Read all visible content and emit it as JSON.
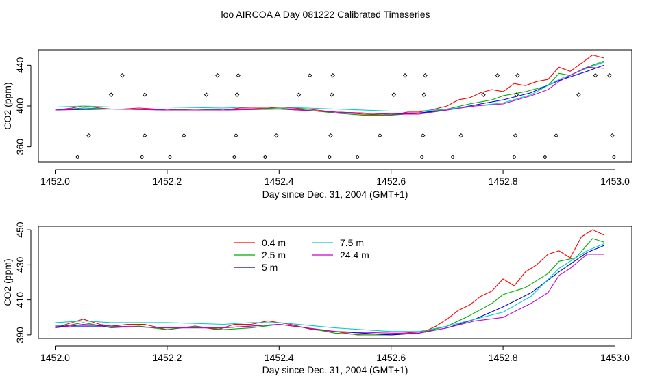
{
  "figure": {
    "title": "loo AIRCOA A  Day 081222  Calibrated Timeseries"
  },
  "chart_data": [
    {
      "type": "line",
      "name": "top-panel",
      "xlabel": "Day since Dec. 31, 2004 (GMT+1)",
      "ylabel": "CO2 (ppm)",
      "xlim": [
        1451.97,
        1453.03
      ],
      "ylim": [
        345,
        455
      ],
      "xticks": [
        1452.0,
        1452.2,
        1452.4,
        1452.6,
        1452.8,
        1453.0
      ],
      "xtick_labels": [
        "1452.0",
        "1452.2",
        "1452.4",
        "1452.6",
        "1452.8",
        "1453.0"
      ],
      "yticks": [
        360,
        400,
        440
      ],
      "ytick_labels": [
        "360",
        "400",
        "440"
      ],
      "legend": false,
      "series": [
        {
          "color": "#ff0000",
          "x": [
            1452.0,
            1452.03,
            1452.05,
            1452.08,
            1452.1,
            1452.12,
            1452.15,
            1452.18,
            1452.2,
            1452.22,
            1452.25,
            1452.28,
            1452.3,
            1452.33,
            1452.35,
            1452.38,
            1452.4,
            1452.45,
            1452.5,
            1452.55,
            1452.6,
            1452.63,
            1452.65,
            1452.67,
            1452.7,
            1452.72,
            1452.74,
            1452.76,
            1452.78,
            1452.8,
            1452.82,
            1452.84,
            1452.86,
            1452.88,
            1452.9,
            1452.92,
            1452.94,
            1452.96,
            1452.98
          ],
          "y": [
            396,
            398,
            400,
            398,
            397,
            397,
            398,
            397,
            396,
            397,
            397,
            397,
            396,
            398,
            398,
            398,
            399,
            397,
            394,
            392,
            391,
            394,
            394,
            396,
            400,
            406,
            408,
            413,
            416,
            414,
            422,
            420,
            424,
            426,
            438,
            434,
            442,
            450,
            447
          ]
        },
        {
          "color": "#00aa00",
          "x": [
            1452.0,
            1452.05,
            1452.1,
            1452.15,
            1452.2,
            1452.25,
            1452.3,
            1452.35,
            1452.4,
            1452.45,
            1452.5,
            1452.55,
            1452.6,
            1452.65,
            1452.7,
            1452.74,
            1452.78,
            1452.8,
            1452.84,
            1452.88,
            1452.9,
            1452.92,
            1452.95,
            1452.98
          ],
          "y": [
            396,
            398,
            397,
            397,
            396,
            397,
            396,
            397,
            398,
            396,
            393,
            391,
            391,
            393,
            397,
            402,
            406,
            410,
            414,
            420,
            432,
            430,
            438,
            444
          ]
        },
        {
          "color": "#0000ff",
          "x": [
            1452.0,
            1452.1,
            1452.2,
            1452.3,
            1452.4,
            1452.5,
            1452.6,
            1452.65,
            1452.7,
            1452.75,
            1452.8,
            1452.85,
            1452.9,
            1452.95,
            1452.98
          ],
          "y": [
            396,
            397,
            396,
            396,
            397,
            394,
            392,
            393,
            396,
            401,
            406,
            413,
            425,
            434,
            440
          ]
        },
        {
          "color": "#00cccc",
          "x": [
            1452.0,
            1452.05,
            1452.1,
            1452.2,
            1452.3,
            1452.35,
            1452.4,
            1452.5,
            1452.6,
            1452.65,
            1452.7,
            1452.75,
            1452.8,
            1452.85,
            1452.9,
            1452.95,
            1452.98
          ],
          "y": [
            399,
            400,
            399,
            399,
            398,
            399,
            399,
            397,
            395,
            395,
            397,
            400,
            403,
            411,
            426,
            437,
            443
          ]
        },
        {
          "color": "#cc00cc",
          "x": [
            1452.0,
            1452.05,
            1452.1,
            1452.2,
            1452.3,
            1452.4,
            1452.5,
            1452.6,
            1452.65,
            1452.7,
            1452.75,
            1452.8,
            1452.85,
            1452.88,
            1452.9,
            1452.92,
            1452.95,
            1452.98
          ],
          "y": [
            396,
            397,
            397,
            396,
            396,
            397,
            394,
            392,
            392,
            396,
            400,
            402,
            410,
            416,
            424,
            430,
            438,
            437
          ]
        }
      ],
      "markers": {
        "x": [
          1452.04,
          1452.06,
          1452.1,
          1452.12,
          1452.155,
          1452.16,
          1452.16,
          1452.205,
          1452.23,
          1452.27,
          1452.29,
          1452.32,
          1452.323,
          1452.325,
          1452.327,
          1452.375,
          1452.395,
          1452.435,
          1452.455,
          1452.49,
          1452.492,
          1452.494,
          1452.496,
          1452.54,
          1452.58,
          1452.605,
          1452.625,
          1452.655,
          1452.657,
          1452.659,
          1452.661,
          1452.71,
          1452.725,
          1452.765,
          1452.79,
          1452.82,
          1452.822,
          1452.824,
          1452.826,
          1452.875,
          1452.895,
          1452.935,
          1452.965,
          1452.99,
          1452.995,
          1452.998
        ],
        "y": [
          350,
          371,
          411,
          430,
          350,
          371,
          411,
          350,
          371,
          411,
          430,
          350,
          371,
          411,
          430,
          350,
          371,
          411,
          430,
          350,
          371,
          411,
          430,
          350,
          371,
          411,
          430,
          350,
          371,
          411,
          430,
          350,
          371,
          411,
          430,
          350,
          371,
          411,
          430,
          350,
          371,
          411,
          430,
          430,
          371,
          350
        ]
      }
    },
    {
      "type": "line",
      "name": "bottom-panel",
      "xlabel": "Day since Dec. 31, 2004 (GMT+1)",
      "ylabel": "CO2 (ppm)",
      "xlim": [
        1451.97,
        1453.03
      ],
      "ylim": [
        388,
        452
      ],
      "xticks": [
        1452.0,
        1452.2,
        1452.4,
        1452.6,
        1452.8,
        1453.0
      ],
      "xtick_labels": [
        "1452.0",
        "1452.2",
        "1452.4",
        "1452.6",
        "1452.8",
        "1453.0"
      ],
      "yticks": [
        390,
        410,
        430,
        450
      ],
      "ytick_labels": [
        "390",
        "410",
        "430",
        "450"
      ],
      "legend": true,
      "legend_placement": "top-left",
      "series": [
        {
          "name": "0.4 m",
          "color": "#ff0000",
          "x": [
            1452.0,
            1452.03,
            1452.05,
            1452.08,
            1452.1,
            1452.13,
            1452.16,
            1452.2,
            1452.25,
            1452.29,
            1452.32,
            1452.35,
            1452.38,
            1452.42,
            1452.46,
            1452.5,
            1452.54,
            1452.58,
            1452.62,
            1452.66,
            1452.68,
            1452.7,
            1452.72,
            1452.74,
            1452.76,
            1452.78,
            1452.8,
            1452.82,
            1452.84,
            1452.86,
            1452.88,
            1452.9,
            1452.92,
            1452.94,
            1452.96,
            1452.98
          ],
          "y": [
            394,
            397,
            399,
            396,
            395,
            396,
            396,
            393,
            395,
            393,
            396,
            396,
            398,
            396,
            393,
            392,
            390,
            390,
            391,
            392,
            395,
            399,
            404,
            407,
            412,
            415,
            422,
            418,
            426,
            430,
            436,
            438,
            434,
            446,
            450,
            447
          ]
        },
        {
          "name": "2.5 m",
          "color": "#00aa00",
          "x": [
            1452.0,
            1452.05,
            1452.1,
            1452.15,
            1452.2,
            1452.25,
            1452.3,
            1452.35,
            1452.4,
            1452.45,
            1452.5,
            1452.55,
            1452.6,
            1452.65,
            1452.7,
            1452.74,
            1452.78,
            1452.8,
            1452.84,
            1452.88,
            1452.9,
            1452.93,
            1452.96,
            1452.98
          ],
          "y": [
            394,
            397,
            394,
            395,
            393,
            395,
            393,
            394,
            396,
            394,
            391,
            390,
            390,
            391,
            395,
            401,
            408,
            413,
            417,
            425,
            432,
            434,
            445,
            443
          ]
        },
        {
          "name": "5 m",
          "color": "#0000cc",
          "x": [
            1452.0,
            1452.1,
            1452.2,
            1452.3,
            1452.4,
            1452.5,
            1452.6,
            1452.65,
            1452.7,
            1452.75,
            1452.8,
            1452.85,
            1452.9,
            1452.95,
            1452.98
          ],
          "y": [
            395,
            395,
            394,
            394,
            396,
            392,
            390,
            391,
            394,
            399,
            406,
            414,
            426,
            437,
            441
          ]
        },
        {
          "name": "7.5 m",
          "color": "#00cccc",
          "x": [
            1452.0,
            1452.05,
            1452.1,
            1452.2,
            1452.3,
            1452.35,
            1452.4,
            1452.5,
            1452.6,
            1452.65,
            1452.7,
            1452.75,
            1452.8,
            1452.85,
            1452.9,
            1452.95,
            1452.98
          ],
          "y": [
            397,
            398,
            397,
            397,
            396,
            397,
            397,
            394,
            392,
            392,
            395,
            399,
            403,
            412,
            428,
            438,
            442
          ]
        },
        {
          "name": "24.4 m",
          "color": "#cc00cc",
          "x": [
            1452.0,
            1452.05,
            1452.1,
            1452.2,
            1452.3,
            1452.4,
            1452.5,
            1452.6,
            1452.65,
            1452.7,
            1452.75,
            1452.8,
            1452.85,
            1452.88,
            1452.9,
            1452.92,
            1452.95,
            1452.98
          ],
          "y": [
            394,
            396,
            395,
            394,
            394,
            396,
            392,
            391,
            391,
            394,
            398,
            400,
            408,
            414,
            424,
            428,
            436,
            436
          ]
        }
      ]
    }
  ]
}
